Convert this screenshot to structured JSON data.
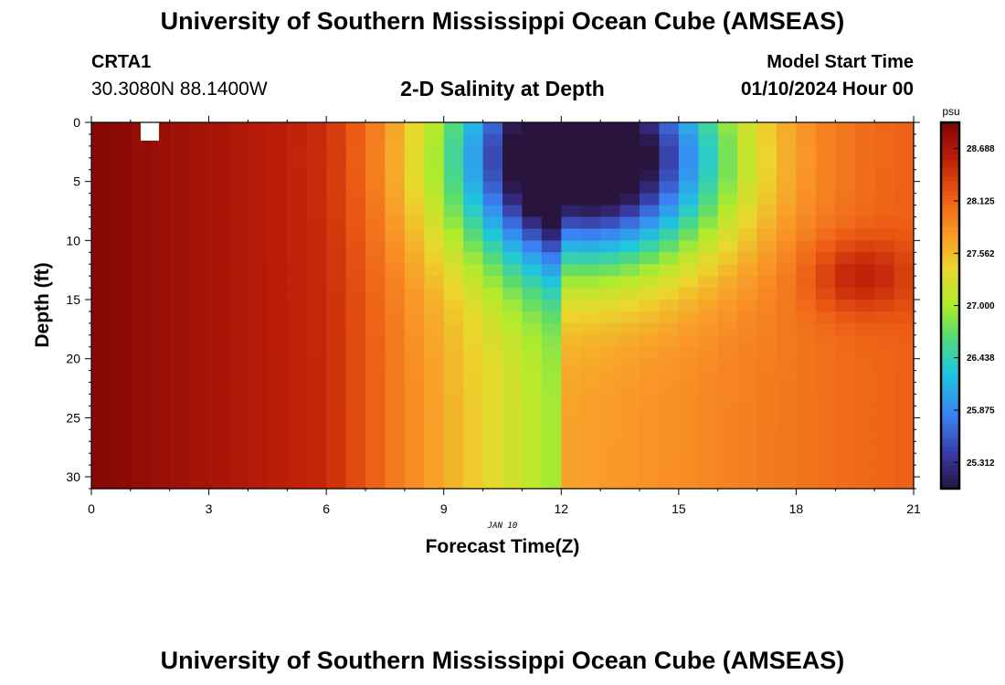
{
  "header": {
    "title": "University of Southern Mississippi Ocean Cube (AMSEAS)",
    "station_id": "CRTA1",
    "station_coords": "30.3080N  88.1400W",
    "subtitle": "2-D Salinity at Depth",
    "start_time_label": "Model Start Time",
    "start_time_value": "01/10/2024 Hour 00"
  },
  "footer": {
    "title": "University of Southern Mississippi Ocean Cube (AMSEAS)"
  },
  "chart_data": {
    "type": "heatmap",
    "title": "2-D Salinity at Depth",
    "xlabel": "Forecast Time(Z)",
    "ylabel": "Depth (ft)",
    "date_label": "JAN 10",
    "xlim": [
      0,
      21
    ],
    "ylim": [
      0,
      31
    ],
    "xticks": [
      0,
      3,
      6,
      9,
      12,
      15,
      18,
      21
    ],
    "yticks": [
      0,
      5,
      10,
      15,
      20,
      25,
      30
    ],
    "colorbar": {
      "unit": "psu",
      "min": 25.03,
      "max": 28.97,
      "ticks": [
        "28.688",
        "28.125",
        "27.562",
        "27.000",
        "26.438",
        "25.875",
        "25.312"
      ]
    },
    "grid": false
  }
}
